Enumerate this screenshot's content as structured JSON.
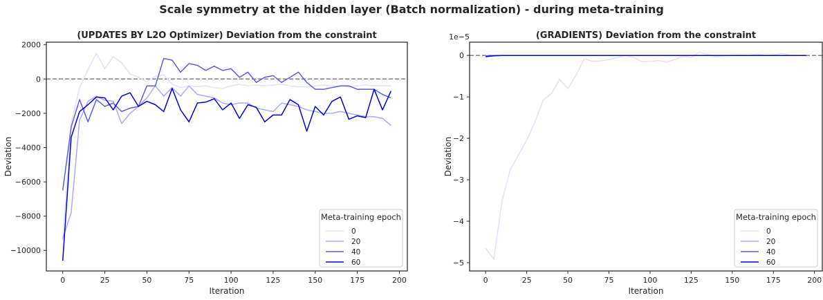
{
  "figure": {
    "suptitle": "Scale symmetry at the hidden layer (Batch normalization) - during meta-training"
  },
  "colors": {
    "epoch_0": "#e0e0fb",
    "epoch_20": "#aaaaf2",
    "epoch_40": "#5c5ce6",
    "epoch_60": "#0000dd",
    "zero_line": "#808080",
    "axes": "#262626"
  },
  "chart_data": [
    {
      "type": "line",
      "title": "(UPDATES BY L2O Optimizer) Deviation from the constraint",
      "xlabel": "Iteration",
      "ylabel": "Deviation",
      "xlim": [
        -9.75,
        204.75
      ],
      "ylim": [
        -11200,
        2150
      ],
      "xticks": [
        0,
        25,
        50,
        75,
        100,
        125,
        150,
        175,
        200
      ],
      "yticks": [
        -10000,
        -8000,
        -6000,
        -4000,
        -2000,
        0,
        2000
      ],
      "ytick_labels": [
        "−10000",
        "−8000",
        "−6000",
        "−4000",
        "−2000",
        "0",
        "2000"
      ],
      "offset_text": "",
      "reference_line": {
        "y": 0,
        "style": "dashed"
      },
      "grid": false,
      "legend": {
        "title": "Meta-training epoch",
        "position": "lower-right"
      },
      "x": [
        0,
        5,
        10,
        15,
        20,
        25,
        30,
        35,
        40,
        45,
        50,
        55,
        60,
        65,
        70,
        75,
        80,
        85,
        90,
        95,
        100,
        105,
        110,
        115,
        120,
        125,
        130,
        135,
        140,
        145,
        150,
        155,
        160,
        165,
        170,
        175,
        180,
        185,
        190,
        195
      ],
      "series": [
        {
          "name": "0",
          "values": [
            -9400,
            -2600,
            -500,
            550,
            1500,
            600,
            1300,
            950,
            300,
            100,
            -150,
            150,
            250,
            -300,
            -500,
            -400,
            -450,
            -400,
            -500,
            -550,
            -400,
            -300,
            -400,
            -350,
            -400,
            -350,
            -300,
            -400,
            -450,
            -450,
            -400,
            -350,
            -400,
            -400,
            -450,
            -400,
            -350,
            -400,
            -400,
            -400
          ]
        },
        {
          "name": "20",
          "values": [
            -9300,
            -7800,
            -2400,
            -1300,
            -1000,
            -1250,
            -1300,
            -2600,
            -2000,
            -1600,
            -1100,
            -400,
            -1000,
            -500,
            -1000,
            -400,
            -900,
            -1000,
            -1100,
            -1400,
            -1500,
            -1400,
            -1400,
            -1700,
            -1800,
            -1900,
            -1400,
            -1500,
            -1600,
            -1800,
            -1900,
            -2000,
            -2000,
            -1900,
            -2000,
            -2100,
            -2200,
            -2200,
            -2300,
            -2700
          ]
        },
        {
          "name": "40",
          "values": [
            -6500,
            -2800,
            -1200,
            -2500,
            -1200,
            -1600,
            -1400,
            -1900,
            -1700,
            -1600,
            -400,
            -400,
            1200,
            1100,
            400,
            900,
            800,
            500,
            750,
            500,
            600,
            100,
            400,
            -200,
            100,
            200,
            -200,
            100,
            400,
            -200,
            -600,
            -600,
            -500,
            -400,
            -400,
            -600,
            -600,
            -600,
            -900,
            -1100
          ]
        },
        {
          "name": "60",
          "values": [
            -10600,
            -3400,
            -1900,
            -1500,
            -1050,
            -1100,
            -1800,
            -1000,
            -800,
            -1600,
            -1300,
            -1500,
            -1900,
            -550,
            -1800,
            -2500,
            -1400,
            -1350,
            -1150,
            -1800,
            -1400,
            -2300,
            -1500,
            -1650,
            -2500,
            -2100,
            -2100,
            -1200,
            -1500,
            -3050,
            -1600,
            -2100,
            -1300,
            -1050,
            -2350,
            -2150,
            -2250,
            -600,
            -1800,
            -700
          ]
        }
      ]
    },
    {
      "type": "line",
      "title": "(GRADIENTS) Deviation from the constraint",
      "xlabel": "Iteration",
      "ylabel": "Deviation",
      "xlim": [
        -9.75,
        204.75
      ],
      "ylim": [
        -5.2,
        0.32
      ],
      "xticks": [
        0,
        25,
        50,
        75,
        100,
        125,
        150,
        175,
        200
      ],
      "yticks": [
        -5,
        -4,
        -3,
        -2,
        -1,
        0
      ],
      "ytick_labels": [
        "−5",
        "−4",
        "−3",
        "−2",
        "−1",
        "0"
      ],
      "offset_text": "1e−5",
      "reference_line": {
        "y": 0,
        "style": "dashed"
      },
      "grid": false,
      "legend": {
        "title": "Meta-training epoch",
        "position": "lower-right"
      },
      "x": [
        0,
        5,
        10,
        15,
        20,
        25,
        30,
        35,
        40,
        45,
        50,
        55,
        60,
        65,
        70,
        75,
        80,
        85,
        90,
        95,
        100,
        105,
        110,
        115,
        120,
        125,
        130,
        135,
        140,
        145,
        150,
        155,
        160,
        165,
        170,
        175,
        180,
        185,
        190,
        195
      ],
      "series": [
        {
          "name": "0",
          "values": [
            -4.65,
            -4.92,
            -3.5,
            -2.75,
            -2.4,
            -2.05,
            -1.6,
            -1.08,
            -0.92,
            -0.58,
            -0.8,
            -0.48,
            -0.08,
            -0.14,
            -0.13,
            -0.1,
            -0.05,
            0.0,
            -0.05,
            -0.15,
            -0.15,
            -0.12,
            -0.16,
            -0.1,
            -0.02,
            -0.05,
            0.08,
            0.02,
            -0.03,
            -0.01,
            0.0,
            0.01,
            0.0,
            0.03,
            0.0,
            0.01,
            0.05,
            0.0,
            0.0,
            0.0
          ]
        },
        {
          "name": "20",
          "values": [
            -0.02,
            -0.01,
            0.0,
            0.0,
            0.0,
            0.0,
            0.0,
            0.0,
            0.0,
            0.0,
            0.0,
            0.0,
            0.0,
            0.0,
            0.0,
            0.0,
            0.0,
            0.0,
            0.0,
            0.0,
            0.0,
            0.0,
            0.0,
            0.0,
            0.0,
            0.0,
            0.0,
            0.0,
            0.0,
            0.0,
            0.0,
            0.0,
            0.0,
            0.0,
            0.0,
            0.0,
            0.0,
            0.0,
            0.0,
            0.0
          ]
        },
        {
          "name": "40",
          "values": [
            -0.01,
            0.0,
            0.0,
            0.0,
            0.0,
            0.0,
            0.0,
            0.0,
            0.0,
            0.0,
            0.0,
            0.0,
            0.0,
            0.0,
            0.0,
            0.0,
            0.0,
            0.0,
            0.0,
            0.0,
            0.0,
            0.0,
            0.0,
            0.0,
            0.0,
            0.0,
            0.0,
            0.0,
            0.0,
            0.0,
            0.0,
            0.0,
            0.0,
            0.0,
            0.0,
            0.0,
            0.0,
            0.0,
            0.0,
            0.0
          ]
        },
        {
          "name": "60",
          "values": [
            -0.03,
            -0.01,
            0.0,
            0.0,
            0.0,
            0.0,
            0.0,
            0.0,
            0.0,
            0.0,
            0.0,
            0.0,
            0.0,
            0.0,
            0.0,
            0.0,
            0.0,
            0.0,
            0.0,
            0.0,
            0.0,
            0.0,
            0.0,
            0.0,
            0.0,
            0.0,
            0.0,
            0.0,
            0.0,
            0.0,
            0.0,
            0.0,
            0.0,
            0.0,
            0.0,
            0.0,
            0.0,
            0.0,
            0.0,
            0.0
          ]
        }
      ]
    }
  ]
}
